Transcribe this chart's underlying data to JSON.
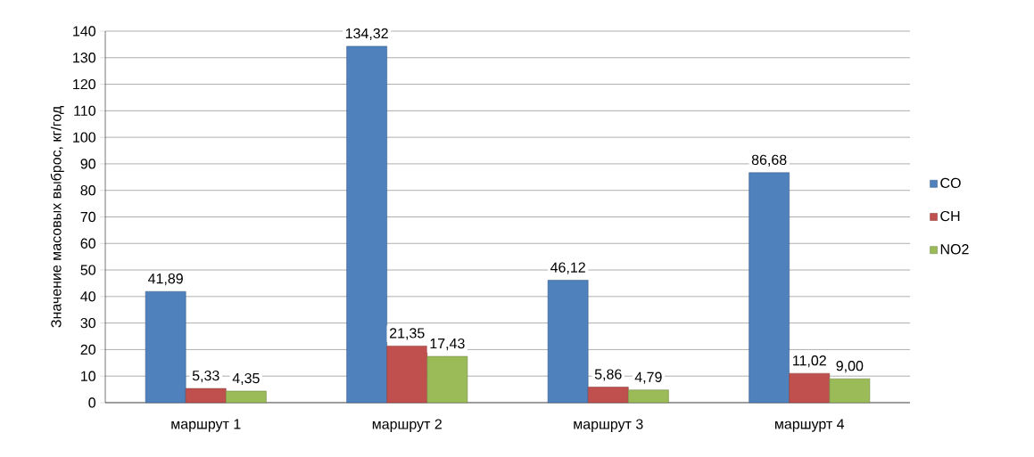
{
  "chart_data": {
    "type": "bar",
    "ylabel": "Значение масовых выброс, кг/год",
    "categories": [
      "маршрут 1",
      "маршрут 2",
      "маршрут 3",
      "маршурт 4"
    ],
    "series": [
      {
        "name": "CO",
        "color": "#4f81bd",
        "values": [
          41.89,
          134.32,
          46.12,
          86.68
        ],
        "value_labels": [
          "41,89",
          "134,32",
          "46,12",
          "86,68"
        ]
      },
      {
        "name": "CH",
        "color": "#c0504d",
        "values": [
          5.33,
          21.35,
          5.86,
          11.02
        ],
        "value_labels": [
          "5,33",
          "21,35",
          "5,86",
          "11,02"
        ]
      },
      {
        "name": "NO2",
        "color": "#9bbb59",
        "values": [
          4.35,
          17.43,
          4.79,
          9.0
        ],
        "value_labels": [
          "4,35",
          "17,43",
          "4,79",
          "9,00"
        ]
      }
    ],
    "ylim": [
      0,
      140
    ],
    "yticks": [
      0,
      10,
      20,
      30,
      40,
      50,
      60,
      70,
      80,
      90,
      100,
      110,
      120,
      130,
      140
    ],
    "grid": "y",
    "legend": "right"
  }
}
